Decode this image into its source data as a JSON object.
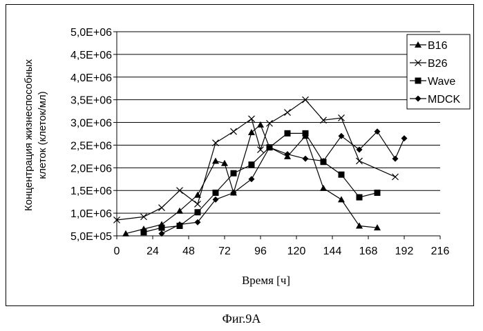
{
  "caption": "Фиг.9А",
  "chart_data": {
    "type": "line",
    "title": "",
    "xlabel": "Время [ч]",
    "ylabel": [
      "Концентрация жизнеспособных",
      "клеток (клеток/мл)"
    ],
    "xlim": [
      0,
      216
    ],
    "ylim": [
      500000,
      5000000
    ],
    "x_ticks": [
      "0",
      "24",
      "48",
      "72",
      "96",
      "120",
      "144",
      "168",
      "192",
      "216"
    ],
    "y_ticks": [
      "5,0E+05",
      "1,0E+06",
      "1,5E+06",
      "2,0E+06",
      "2,5E+06",
      "3,0E+06",
      "3,5E+06",
      "4,0E+06",
      "4,5E+06",
      "5,0E+06"
    ],
    "grid": "horizontal",
    "legend_position": "top-right",
    "series": [
      {
        "name": "B16",
        "marker": "triangle",
        "x": [
          6,
          18,
          30,
          42,
          54,
          66,
          72,
          78,
          90,
          96,
          102,
          114,
          126,
          138,
          150,
          162,
          174
        ],
        "y": [
          550000,
          650000,
          750000,
          1050000,
          1400000,
          2150000,
          2100000,
          1450000,
          2780000,
          2950000,
          2450000,
          2250000,
          2700000,
          1550000,
          1300000,
          720000,
          680000
        ]
      },
      {
        "name": "B26",
        "marker": "x",
        "x": [
          0,
          18,
          30,
          42,
          54,
          66,
          78,
          90,
          96,
          102,
          114,
          126,
          138,
          150,
          162,
          186
        ],
        "y": [
          850000,
          920000,
          1120000,
          1500000,
          1200000,
          2550000,
          2800000,
          3080000,
          2400000,
          2980000,
          3220000,
          3500000,
          3050000,
          3100000,
          2150000,
          1800000
        ]
      },
      {
        "name": "Wave",
        "marker": "square",
        "x": [
          18,
          30,
          42,
          54,
          66,
          78,
          90,
          102,
          114,
          126,
          138,
          150,
          162,
          174
        ],
        "y": [
          580000,
          680000,
          720000,
          1020000,
          1450000,
          1880000,
          2070000,
          2450000,
          2760000,
          2760000,
          2130000,
          1850000,
          1350000,
          1450000
        ]
      },
      {
        "name": "MDCK",
        "marker": "diamond",
        "x": [
          30,
          42,
          54,
          66,
          78,
          90,
          102,
          114,
          126,
          138,
          150,
          162,
          174,
          186,
          192
        ],
        "y": [
          550000,
          750000,
          800000,
          1300000,
          1450000,
          1750000,
          2450000,
          2300000,
          2200000,
          2150000,
          2700000,
          2400000,
          2800000,
          2200000,
          2650000
        ]
      }
    ]
  }
}
